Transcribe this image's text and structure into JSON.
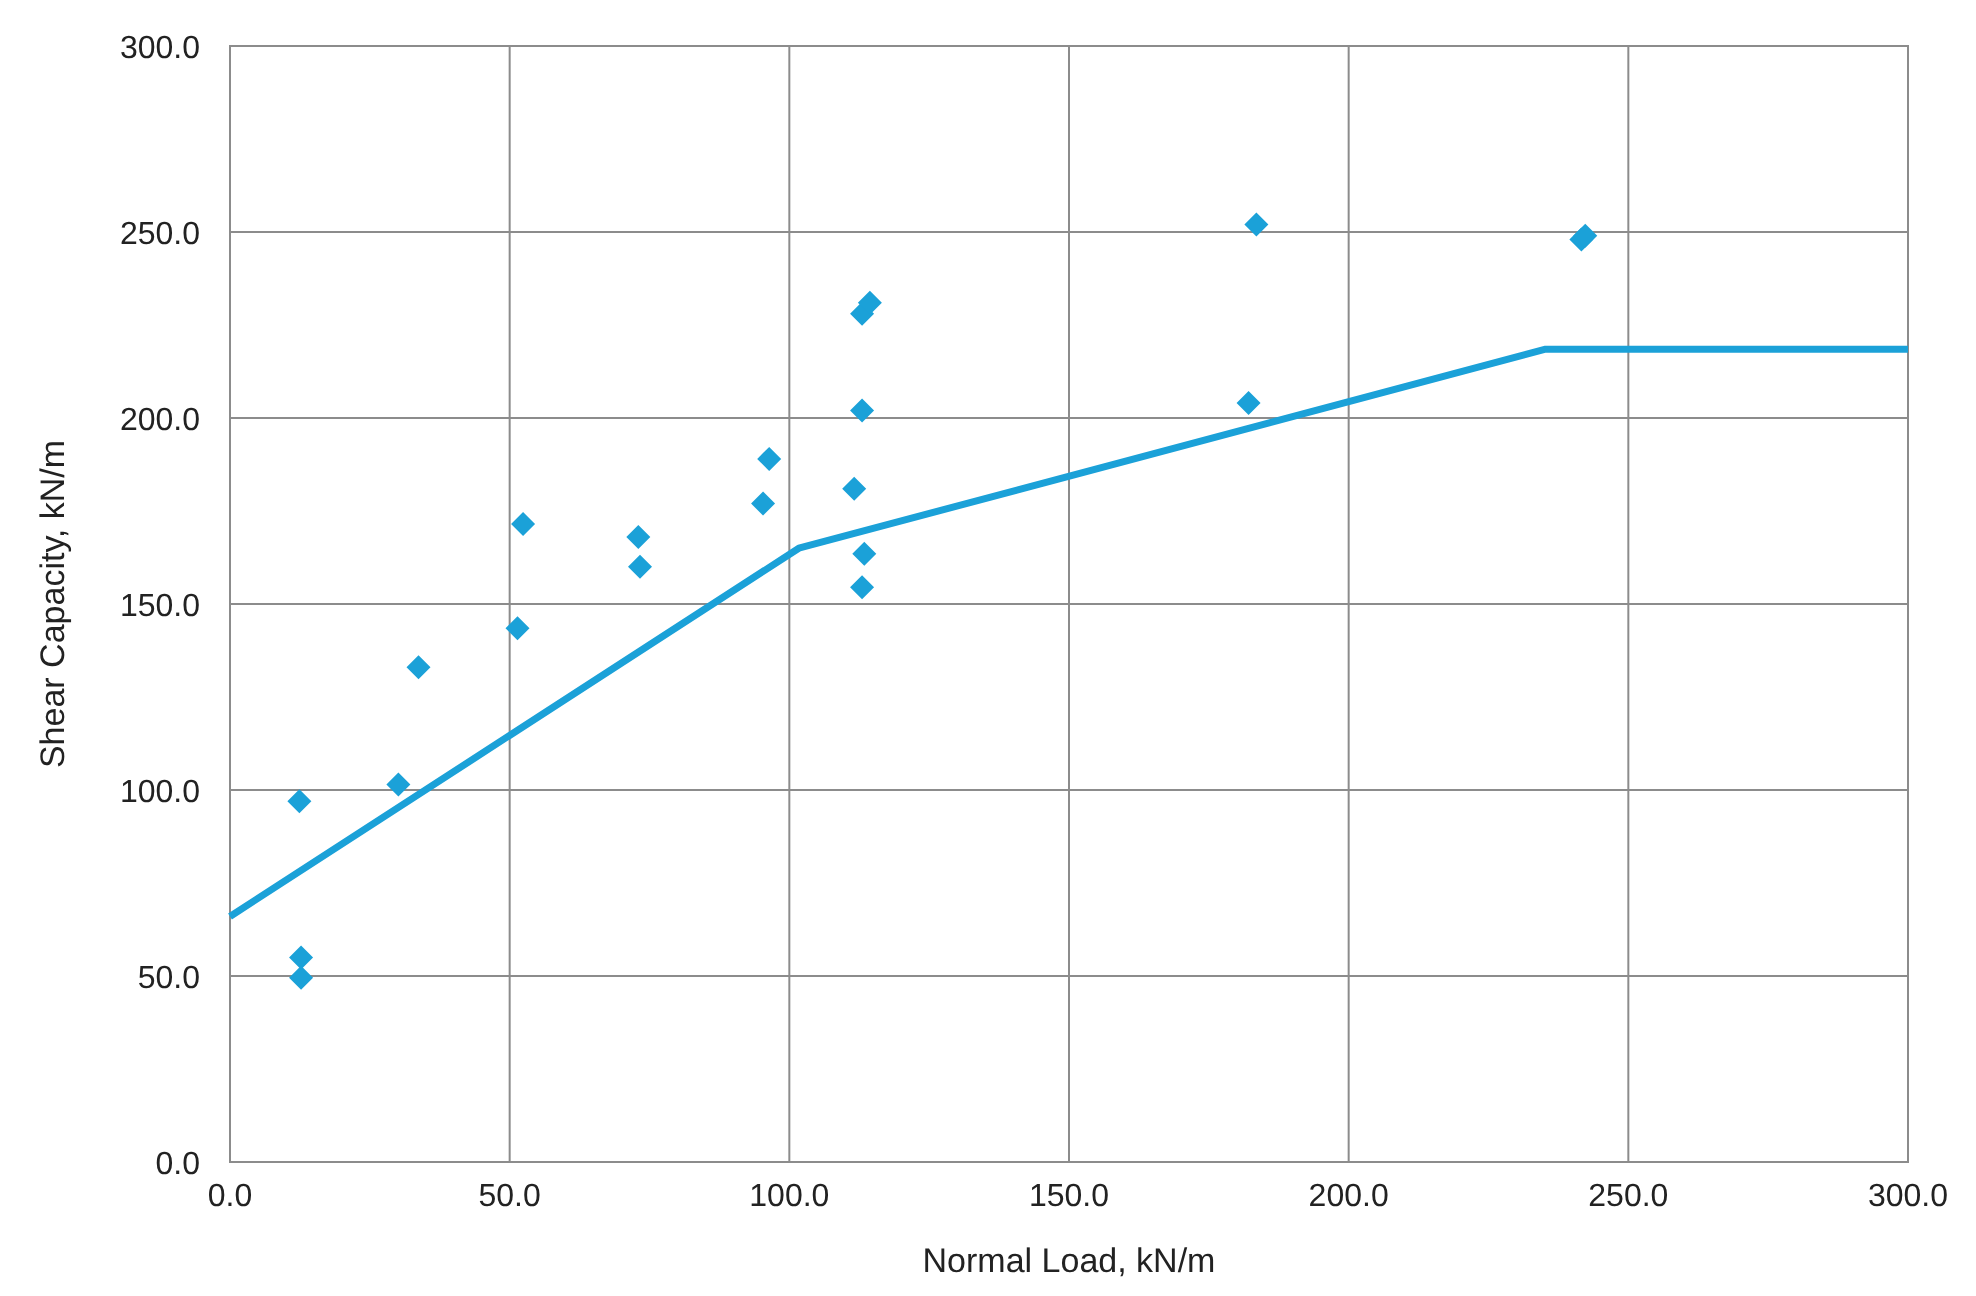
{
  "chart_data": {
    "type": "scatter",
    "xlabel": "Normal Load, kN/m",
    "ylabel": "Shear Capacity, kN/m",
    "xlim": [
      0,
      300
    ],
    "ylim": [
      0,
      300
    ],
    "xticks": [
      {
        "value": 0,
        "label": "0.0"
      },
      {
        "value": 50,
        "label": "50.0"
      },
      {
        "value": 100,
        "label": "100.0"
      },
      {
        "value": 150,
        "label": "150.0"
      },
      {
        "value": 200,
        "label": "200.0"
      },
      {
        "value": 250,
        "label": "250.0"
      },
      {
        "value": 300,
        "label": "300.0"
      }
    ],
    "yticks": [
      {
        "value": 0,
        "label": "0.0"
      },
      {
        "value": 50,
        "label": "50.0"
      },
      {
        "value": 100,
        "label": "100.0"
      },
      {
        "value": 150,
        "label": "150.0"
      },
      {
        "value": 200,
        "label": "200.0"
      },
      {
        "value": 250,
        "label": "250.0"
      },
      {
        "value": 300,
        "label": "300.0"
      }
    ],
    "grid": true,
    "marker": "diamond",
    "series": [
      {
        "color": "#1ba1d8",
        "x": [
          12.4,
          12.7,
          12.7,
          30.1,
          33.7,
          51.4,
          52.4,
          73,
          73.3,
          95.3,
          96.4,
          111.6,
          113,
          114.4,
          113,
          113.4,
          113,
          183.5,
          182.1,
          241.6,
          242.3
        ],
        "values": [
          97,
          55,
          49.5,
          101.5,
          133,
          143.5,
          171.5,
          168,
          160,
          177,
          189,
          181,
          228,
          231,
          202,
          163.5,
          154.5,
          252,
          204,
          248,
          249
        ]
      },
      {
        "type": "line",
        "color": "#1ba1d8",
        "marker": "none",
        "line_style": "solid",
        "x": [
          0,
          101.7,
          235.2,
          300
        ],
        "values": [
          66,
          165,
          218.5,
          218.5
        ]
      }
    ]
  }
}
